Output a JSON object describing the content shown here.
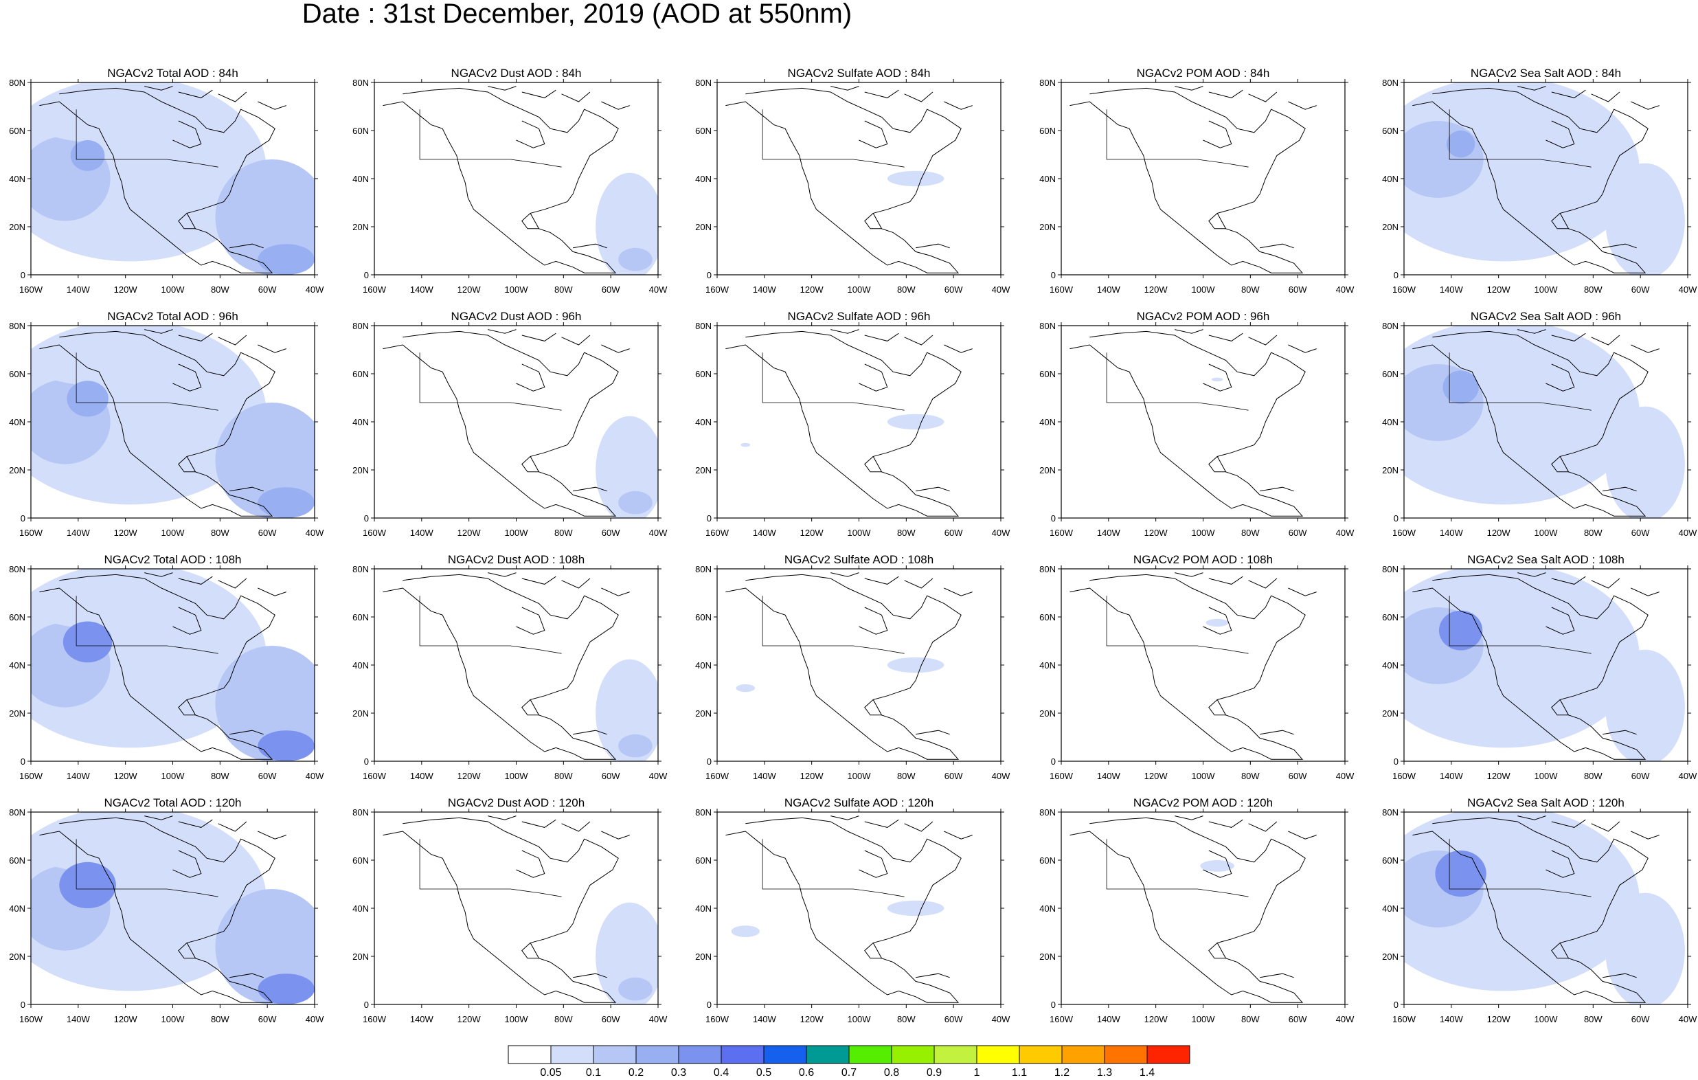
{
  "title": "Date : 31st December, 2019 (AOD at 550nm)",
  "lat_labels": [
    "80N",
    "60N",
    "40N",
    "20N",
    "0"
  ],
  "lon_labels": [
    "160W",
    "140W",
    "120W",
    "100W",
    "80W",
    "60W",
    "40W"
  ],
  "panels": [
    {
      "title": "NGACv2 Total AOD : 84h",
      "species": "total",
      "hour": 84
    },
    {
      "title": "NGACv2 Dust AOD : 84h",
      "species": "dust",
      "hour": 84
    },
    {
      "title": "NGACv2 Sulfate AOD : 84h",
      "species": "sulfate",
      "hour": 84
    },
    {
      "title": "NGACv2 POM AOD : 84h",
      "species": "pom",
      "hour": 84
    },
    {
      "title": "NGACv2 Sea Salt AOD : 84h",
      "species": "seasalt",
      "hour": 84
    },
    {
      "title": "NGACv2 Total AOD : 96h",
      "species": "total",
      "hour": 96
    },
    {
      "title": "NGACv2 Dust AOD : 96h",
      "species": "dust",
      "hour": 96
    },
    {
      "title": "NGACv2 Sulfate AOD : 96h",
      "species": "sulfate",
      "hour": 96
    },
    {
      "title": "NGACv2 POM AOD : 96h",
      "species": "pom",
      "hour": 96
    },
    {
      "title": "NGACv2 Sea Salt AOD : 96h",
      "species": "seasalt",
      "hour": 96
    },
    {
      "title": "NGACv2 Total AOD : 108h",
      "species": "total",
      "hour": 108
    },
    {
      "title": "NGACv2 Dust AOD : 108h",
      "species": "dust",
      "hour": 108
    },
    {
      "title": "NGACv2 Sulfate AOD : 108h",
      "species": "sulfate",
      "hour": 108
    },
    {
      "title": "NGACv2 POM AOD : 108h",
      "species": "pom",
      "hour": 108
    },
    {
      "title": "NGACv2 Sea Salt AOD : 108h",
      "species": "seasalt",
      "hour": 108
    },
    {
      "title": "NGACv2 Total AOD : 120h",
      "species": "total",
      "hour": 120
    },
    {
      "title": "NGACv2 Dust AOD : 120h",
      "species": "dust",
      "hour": 120
    },
    {
      "title": "NGACv2 Sulfate AOD : 120h",
      "species": "sulfate",
      "hour": 120
    },
    {
      "title": "NGACv2 POM AOD : 120h",
      "species": "pom",
      "hour": 120
    },
    {
      "title": "NGACv2 Sea Salt  AOD : 120h",
      "species": "seasalt",
      "hour": 120
    }
  ],
  "colorbar": {
    "colors": [
      "#ffffff",
      "#d3defa",
      "#b6c7f6",
      "#98b0f2",
      "#7b93ef",
      "#5b6ff0",
      "#1660ee",
      "#009a94",
      "#55ee00",
      "#96f000",
      "#c2f23e",
      "#ffff00",
      "#ffca00",
      "#ffa200",
      "#ff7400",
      "#ff2400"
    ],
    "labels": [
      "0.05",
      "0.1",
      "0.2",
      "0.3",
      "0.4",
      "0.5",
      "0.6",
      "0.7",
      "0.8",
      "0.9",
      "1",
      "1.1",
      "1.2",
      "1.3",
      "1.4"
    ]
  },
  "map_style": {
    "coastline_color": "#000000",
    "frame_color": "#000000"
  }
}
